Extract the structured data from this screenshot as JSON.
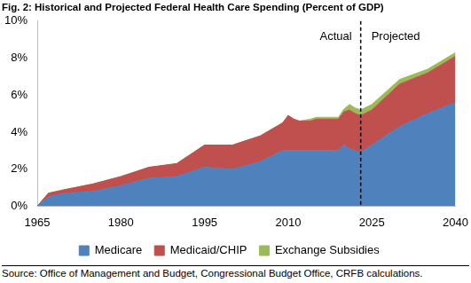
{
  "chart_data": {
    "type": "area",
    "title": "Fig. 2: Historical and Projected Federal Health Care Spending (Percent of GDP)",
    "source": "Source: Office of Management and Budget, Congressional Budget Office, CRFB calculations.",
    "annotations": [
      "Actual",
      "Projected"
    ],
    "projection_start": 2023,
    "stacked": true,
    "grid": false,
    "legend": "bottom",
    "x": [
      1965,
      1967,
      1970,
      1975,
      1980,
      1985,
      1990,
      1993,
      1995,
      2000,
      2005,
      2009,
      2010,
      2011,
      2012,
      2014,
      2015,
      2019,
      2020,
      2021,
      2022,
      2023,
      2025,
      2030,
      2035,
      2040
    ],
    "xlim": [
      1965,
      2040
    ],
    "xticks": [
      1965,
      1980,
      1995,
      2010,
      2025,
      2040
    ],
    "ylim": [
      0,
      10
    ],
    "yticks": [
      {
        "value": 0,
        "label": "0%"
      },
      {
        "value": 2,
        "label": "2%"
      },
      {
        "value": 4,
        "label": "4%"
      },
      {
        "value": 6,
        "label": "6%"
      },
      {
        "value": 8,
        "label": "8%"
      },
      {
        "value": 10,
        "label": "10%"
      }
    ],
    "series": [
      {
        "name": "Medicare",
        "color": "#4f81bd",
        "values": [
          0,
          0.5,
          0.7,
          0.8,
          1.1,
          1.5,
          1.6,
          1.9,
          2.1,
          2.0,
          2.4,
          3.0,
          3.0,
          3.0,
          3.0,
          3.0,
          3.0,
          3.0,
          3.3,
          3.1,
          3.0,
          2.9,
          3.3,
          4.3,
          5.0,
          5.6
        ]
      },
      {
        "name": "Medicaid/CHIP",
        "color": "#c0504d",
        "values": [
          0,
          0.2,
          0.2,
          0.4,
          0.5,
          0.6,
          0.7,
          1.0,
          1.2,
          1.3,
          1.4,
          1.5,
          1.9,
          1.7,
          1.6,
          1.6,
          1.7,
          1.7,
          1.8,
          2.1,
          2.0,
          2.0,
          1.9,
          2.3,
          2.2,
          2.5
        ]
      },
      {
        "name": "Exchange Subsidies",
        "color": "#9bbb59",
        "values": [
          0,
          0,
          0,
          0,
          0,
          0,
          0,
          0,
          0,
          0,
          0,
          0,
          0,
          0,
          0,
          0.1,
          0.1,
          0.1,
          0.15,
          0.3,
          0.3,
          0.3,
          0.3,
          0.25,
          0.2,
          0.2
        ]
      }
    ]
  }
}
